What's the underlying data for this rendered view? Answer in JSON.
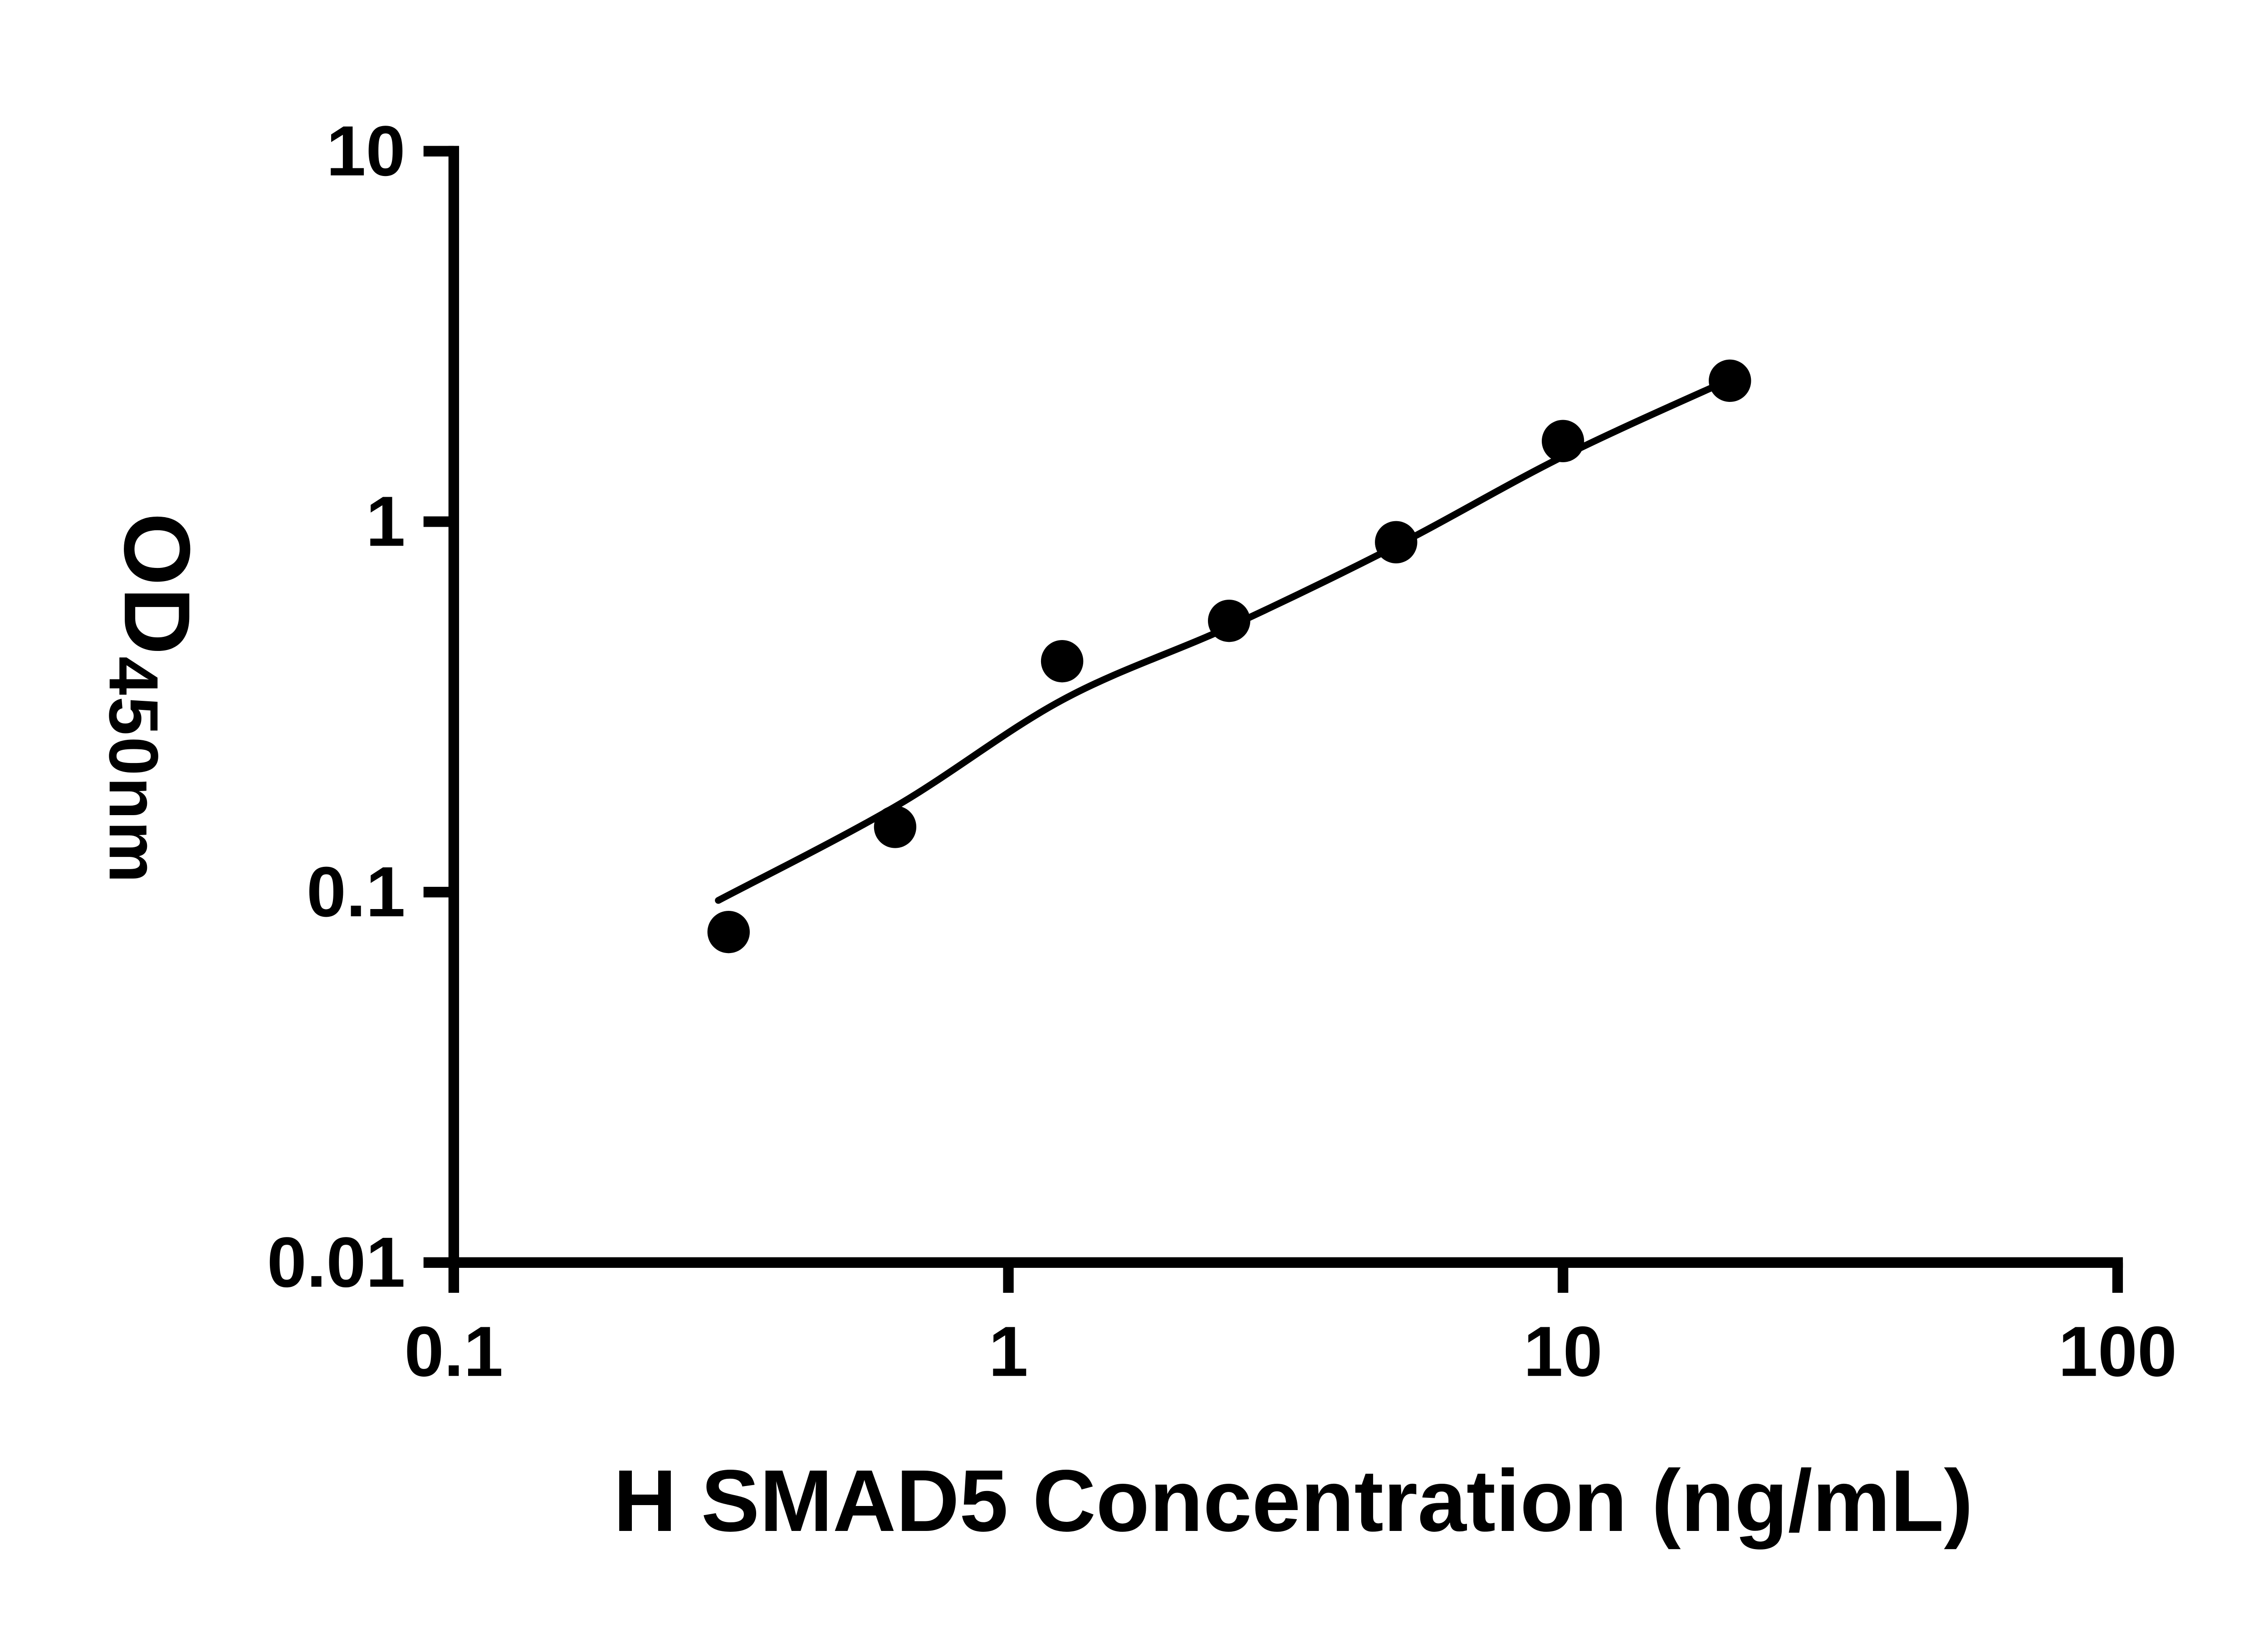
{
  "chart_data": {
    "type": "scatter",
    "title": "",
    "xlabel": "H SMAD5 Concentration (ng/mL)",
    "ylabel_main": "OD",
    "ylabel_sub": "450nm",
    "x_scale": "log",
    "y_scale": "log",
    "xlim": [
      0.1,
      100
    ],
    "ylim": [
      0.01,
      10
    ],
    "grid": "off",
    "legend": "none",
    "background_color": "#ffffff",
    "axis_color": "#000000",
    "x_ticks": [
      {
        "value": 0.1,
        "label": "0.1"
      },
      {
        "value": 1,
        "label": "1"
      },
      {
        "value": 10,
        "label": "10"
      },
      {
        "value": 100,
        "label": "100"
      }
    ],
    "y_ticks": [
      {
        "value": 0.01,
        "label": "0.01"
      },
      {
        "value": 0.1,
        "label": "0.1"
      },
      {
        "value": 1,
        "label": "1"
      },
      {
        "value": 10,
        "label": "10"
      }
    ],
    "series": [
      {
        "marker": "circle",
        "marker_color": "#000000",
        "marker_radius": 14,
        "points": [
          {
            "x": 0.313,
            "y": 0.078
          },
          {
            "x": 0.625,
            "y": 0.15
          },
          {
            "x": 1.25,
            "y": 0.42
          },
          {
            "x": 2.5,
            "y": 0.54
          },
          {
            "x": 5,
            "y": 0.88
          },
          {
            "x": 10,
            "y": 1.65
          },
          {
            "x": 20,
            "y": 2.4
          }
        ]
      }
    ],
    "fit_curve": {
      "color": "#000000",
      "points": [
        {
          "x": 0.3,
          "y": 0.095
        },
        {
          "x": 0.625,
          "y": 0.17
        },
        {
          "x": 1.25,
          "y": 0.33
        },
        {
          "x": 2.5,
          "y": 0.52
        },
        {
          "x": 5,
          "y": 0.86
        },
        {
          "x": 10,
          "y": 1.5
        },
        {
          "x": 20,
          "y": 2.42
        }
      ]
    }
  }
}
